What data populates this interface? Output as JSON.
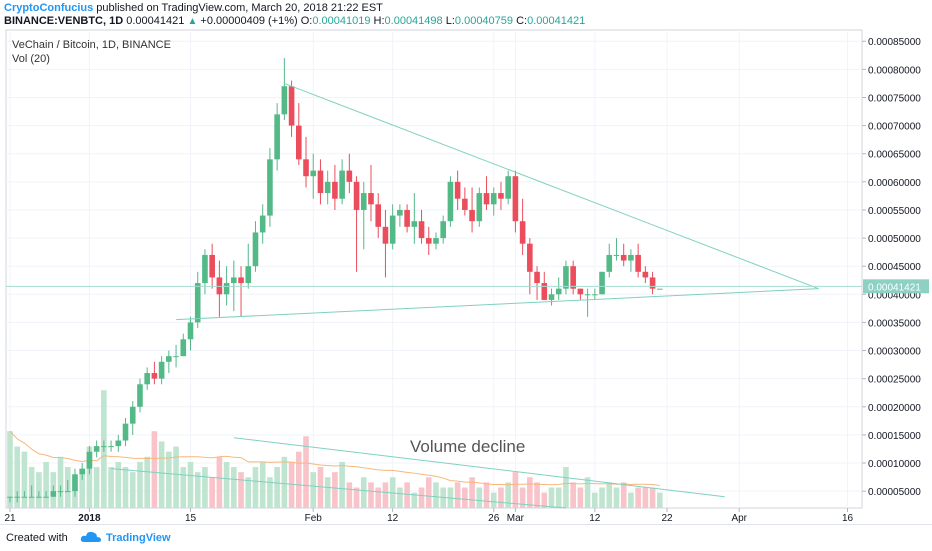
{
  "header": {
    "author": "CryptoConfucius",
    "published": "published on TradingView.com, March 20, 2018 21:22 EST",
    "symbol": "BINANCE:VENBTC, 1D",
    "last": "0.00041421",
    "change": "+0.00000409 (+1%)",
    "o_label": "O:",
    "o_value": "0.00041019",
    "h_label": "H:",
    "h_value": "0.00041498",
    "l_label": "L:",
    "l_value": "0.00040759",
    "c_label": "C:",
    "c_value": "0.00041421"
  },
  "legend": {
    "title": "VeChain / Bitcoin, 1D, BINANCE",
    "vol": "Vol (20)"
  },
  "footer": {
    "created": "Created with",
    "brand": "TradingView"
  },
  "colors": {
    "up": "#53b987",
    "down": "#eb4d5c",
    "vol_up": "#bfe4d0",
    "vol_down": "#f8c3c9",
    "trendline": "#7fd1c0",
    "price_badge": "#8cd1c4"
  },
  "chart_data": {
    "type": "candlestick",
    "title": "VeChain / Bitcoin, 1D, BINANCE",
    "y_axis": {
      "min": 2e-05,
      "max": 0.00087,
      "ticks": [
        "0.00005000",
        "0.00010000",
        "0.00015000",
        "0.00020000",
        "0.00025000",
        "0.00030000",
        "0.00035000",
        "0.00040000",
        "0.00045000",
        "0.00050000",
        "0.00055000",
        "0.00060000",
        "0.00065000",
        "0.00070000",
        "0.00075000",
        "0.00080000",
        "0.00085000"
      ],
      "current_price": "0.00041421"
    },
    "x_axis": {
      "ticks": [
        {
          "label": "21",
          "day": 0
        },
        {
          "label": "2018",
          "day": 11
        },
        {
          "label": "15",
          "day": 25
        },
        {
          "label": "Feb",
          "day": 42
        },
        {
          "label": "12",
          "day": 53
        },
        {
          "label": "26",
          "day": 67
        },
        {
          "label": "Mar",
          "day": 70
        },
        {
          "label": "12",
          "day": 81
        },
        {
          "label": "22",
          "day": 91
        },
        {
          "label": "Apr",
          "day": 101
        },
        {
          "label": "16",
          "day": 116
        }
      ]
    },
    "annotation": "Volume decline",
    "candles": [
      [
        4e-05,
        4e-05,
        3e-05,
        4e-05
      ],
      [
        4e-05,
        5e-05,
        3e-05,
        4e-05
      ],
      [
        4e-05,
        5e-05,
        4e-05,
        4e-05
      ],
      [
        4e-05,
        6e-05,
        4e-05,
        4e-05
      ],
      [
        4e-05,
        5e-05,
        4e-05,
        4e-05
      ],
      [
        4e-05,
        5e-05,
        4e-05,
        4e-05
      ],
      [
        4e-05,
        6e-05,
        4e-05,
        5e-05
      ],
      [
        5e-05,
        6e-05,
        4e-05,
        5e-05
      ],
      [
        5e-05,
        7e-05,
        5e-05,
        5e-05
      ],
      [
        5e-05,
        9e-05,
        4e-05,
        8e-05
      ],
      [
        8e-05,
        0.0001,
        7e-05,
        9e-05
      ],
      [
        9e-05,
        0.00013,
        8e-05,
        0.00012
      ],
      [
        0.00012,
        0.00014,
        0.00011,
        0.00013
      ],
      [
        0.00013,
        0.00014,
        0.00012,
        0.00013
      ],
      [
        0.00013,
        0.00014,
        0.00012,
        0.00013
      ],
      [
        0.00013,
        0.00015,
        0.00012,
        0.00014
      ],
      [
        0.00014,
        0.00018,
        0.00013,
        0.00017
      ],
      [
        0.00017,
        0.00021,
        0.00015,
        0.0002
      ],
      [
        0.0002,
        0.00025,
        0.00019,
        0.00024
      ],
      [
        0.00024,
        0.00027,
        0.00023,
        0.00026
      ],
      [
        0.00026,
        0.00028,
        0.00024,
        0.00025
      ],
      [
        0.00025,
        0.00029,
        0.00024,
        0.00028
      ],
      [
        0.00028,
        0.0003,
        0.00026,
        0.00029
      ],
      [
        0.00029,
        0.00031,
        0.00027,
        0.00029
      ],
      [
        0.00029,
        0.00033,
        0.00029,
        0.00032
      ],
      [
        0.00032,
        0.00036,
        0.0003,
        0.00035
      ],
      [
        0.00035,
        0.00044,
        0.00034,
        0.00042
      ],
      [
        0.00042,
        0.00048,
        0.0004,
        0.00047
      ],
      [
        0.00047,
        0.00049,
        0.00041,
        0.00043
      ],
      [
        0.00043,
        0.00046,
        0.00036,
        0.0004
      ],
      [
        0.0004,
        0.00045,
        0.00038,
        0.00042
      ],
      [
        0.00042,
        0.00046,
        0.00037,
        0.00043
      ],
      [
        0.00043,
        0.00045,
        0.00036,
        0.00042
      ],
      [
        0.00042,
        0.00049,
        0.00041,
        0.00045
      ],
      [
        0.00045,
        0.00053,
        0.00044,
        0.00051
      ],
      [
        0.00051,
        0.00056,
        0.00049,
        0.00054
      ],
      [
        0.00054,
        0.00066,
        0.00052,
        0.00064
      ],
      [
        0.00064,
        0.00074,
        0.00062,
        0.00072
      ],
      [
        0.00072,
        0.00082,
        0.00071,
        0.00077
      ],
      [
        0.00077,
        0.00078,
        0.00068,
        0.0007
      ],
      [
        0.0007,
        0.00074,
        0.00063,
        0.00064
      ],
      [
        0.00064,
        0.00068,
        0.00059,
        0.00061
      ],
      [
        0.00061,
        0.00065,
        0.00057,
        0.00062
      ],
      [
        0.00062,
        0.00064,
        0.00056,
        0.00058
      ],
      [
        0.00058,
        0.00062,
        0.00056,
        0.0006
      ],
      [
        0.0006,
        0.00063,
        0.00055,
        0.00057
      ],
      [
        0.00057,
        0.00064,
        0.00056,
        0.00062
      ],
      [
        0.00062,
        0.00065,
        0.00058,
        0.0006
      ],
      [
        0.0006,
        0.00061,
        0.00044,
        0.00055
      ],
      [
        0.00055,
        0.0006,
        0.00048,
        0.00058
      ],
      [
        0.00058,
        0.00063,
        0.00053,
        0.00056
      ],
      [
        0.00056,
        0.00058,
        0.0005,
        0.00052
      ],
      [
        0.00052,
        0.00055,
        0.00043,
        0.00049
      ],
      [
        0.00049,
        0.00056,
        0.00048,
        0.00054
      ],
      [
        0.00054,
        0.00056,
        0.00052,
        0.00055
      ],
      [
        0.00055,
        0.00056,
        0.00051,
        0.00052
      ],
      [
        0.00052,
        0.00058,
        0.00049,
        0.00053
      ],
      [
        0.00053,
        0.00055,
        0.00049,
        0.0005
      ],
      [
        0.0005,
        0.00052,
        0.00047,
        0.00049
      ],
      [
        0.00049,
        0.00051,
        0.00048,
        0.0005
      ],
      [
        0.0005,
        0.00054,
        0.00049,
        0.00053
      ],
      [
        0.00053,
        0.00061,
        0.00052,
        0.0006
      ],
      [
        0.0006,
        0.00062,
        0.00055,
        0.00057
      ],
      [
        0.00057,
        0.00059,
        0.00054,
        0.00055
      ],
      [
        0.00055,
        0.00059,
        0.00051,
        0.00053
      ],
      [
        0.00053,
        0.00059,
        0.00052,
        0.00058
      ],
      [
        0.00058,
        0.00061,
        0.00055,
        0.00056
      ],
      [
        0.00056,
        0.00059,
        0.00054,
        0.00058
      ],
      [
        0.00058,
        0.0006,
        0.00055,
        0.00057
      ],
      [
        0.00057,
        0.00062,
        0.00056,
        0.00061
      ],
      [
        0.00061,
        0.00062,
        0.00051,
        0.00053
      ],
      [
        0.00053,
        0.00057,
        0.00047,
        0.00049
      ],
      [
        0.00049,
        0.0005,
        0.0004,
        0.00044
      ],
      [
        0.00044,
        0.00045,
        0.00039,
        0.00042
      ],
      [
        0.00042,
        0.00044,
        0.00039,
        0.00039
      ],
      [
        0.00039,
        0.00041,
        0.00038,
        0.0004
      ],
      [
        0.0004,
        0.00043,
        0.00039,
        0.00041
      ],
      [
        0.00041,
        0.00046,
        0.0004,
        0.00045
      ],
      [
        0.00045,
        0.00046,
        0.0004,
        0.00041
      ],
      [
        0.00041,
        0.00041,
        0.00039,
        0.0004
      ],
      [
        0.0004,
        0.00041,
        0.00036,
        0.0004
      ],
      [
        0.0004,
        0.00041,
        0.00039,
        0.0004
      ],
      [
        0.0004,
        0.00044,
        0.0004,
        0.00044
      ],
      [
        0.00044,
        0.00049,
        0.00043,
        0.00047
      ],
      [
        0.00047,
        0.0005,
        0.00046,
        0.00047
      ],
      [
        0.00047,
        0.00049,
        0.00045,
        0.00046
      ],
      [
        0.00046,
        0.00048,
        0.00044,
        0.00047
      ],
      [
        0.00047,
        0.00049,
        0.00043,
        0.00044
      ],
      [
        0.00044,
        0.00045,
        0.00042,
        0.00043
      ],
      [
        0.00043,
        0.00044,
        0.0004,
        0.00041
      ],
      [
        0.00041,
        0.00041,
        0.00041,
        0.00041
      ]
    ],
    "volume": [
      0.00015,
      0.00012,
      0.00011,
      8e-05,
      7e-05,
      9e-05,
      7e-05,
      0.0001,
      8e-05,
      6e-05,
      7e-05,
      0.00012,
      8e-05,
      0.00023,
      8e-05,
      9e-05,
      8e-05,
      7e-05,
      9e-05,
      0.0001,
      0.00015,
      0.00013,
      0.00011,
      0.00012,
      8e-05,
      9e-05,
      7e-05,
      8e-05,
      6e-05,
      0.0001,
      9e-05,
      8e-05,
      7e-05,
      6e-05,
      8e-05,
      9e-05,
      6e-05,
      8e-05,
      0.0001,
      9e-05,
      0.00011,
      0.00014,
      7e-05,
      8e-05,
      6e-05,
      7e-05,
      9e-05,
      5e-05,
      4e-05,
      6e-05,
      5e-05,
      4e-05,
      5e-05,
      6e-05,
      4e-05,
      5e-05,
      3e-05,
      4e-05,
      6e-05,
      5e-05,
      4e-05,
      4e-05,
      5e-05,
      4e-05,
      6e-05,
      4e-05,
      5e-05,
      3e-05,
      4e-05,
      5e-05,
      7e-05,
      4e-05,
      6e-05,
      5e-05,
      3e-05,
      4e-05,
      4e-05,
      8e-05,
      5e-05,
      4e-05,
      6e-05,
      3e-05,
      4e-05,
      5e-05,
      4e-05,
      5e-05,
      3e-05,
      4e-05,
      4e-05,
      4e-05,
      3e-05
    ]
  }
}
